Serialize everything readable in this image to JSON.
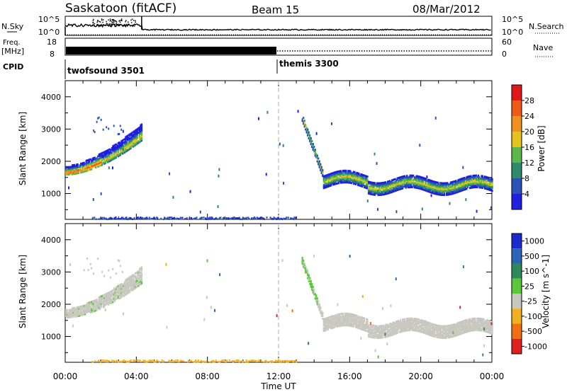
{
  "header": {
    "station": "Saskatoon (fitACF)",
    "beam": "Beam 15",
    "date": "08/Mar/2012"
  },
  "top_panels": {
    "nsky_label": "N.Sky",
    "nsky_ticks": [
      "10^5",
      "10^0"
    ],
    "nsearch_label": "N.Search",
    "nsearch_ticks": [
      "10^5",
      "10^0"
    ],
    "freq_label": "Freq.",
    "freq_unit": "[MHz]",
    "freq_ticks": [
      "18",
      "8"
    ],
    "nave_label": "Nave",
    "nave_ticks": [
      "60",
      "0"
    ],
    "cpid_label": "CPID",
    "cpid_modes": [
      {
        "name": "twofsound 3501",
        "start_hour": 0
      },
      {
        "name": "themis 3300",
        "start_hour": 12
      }
    ]
  },
  "time_axis": {
    "label": "Time UT",
    "range_hours": [
      0,
      24
    ],
    "ticks": [
      {
        "hour": 0,
        "label": "00:00"
      },
      {
        "hour": 4,
        "label": "04:00"
      },
      {
        "hour": 8,
        "label": "08:00"
      },
      {
        "hour": 12,
        "label": "12:00"
      },
      {
        "hour": 16,
        "label": "16:00"
      },
      {
        "hour": 20,
        "label": "20:00"
      },
      {
        "hour": 24,
        "label": "00:00"
      }
    ]
  },
  "chart_data": [
    {
      "type": "heatmap",
      "title": "",
      "ylabel": "Slant Range [km]",
      "ylim": [
        200,
        4500
      ],
      "yticks": [
        1000,
        2000,
        3000,
        4000
      ],
      "colorbar_label": "Power [dB]",
      "colorbar_ticks": [
        "4",
        "8",
        "12",
        "16",
        "20",
        "24",
        "28"
      ],
      "colorbar_colors": [
        "#1f1fe0",
        "#2a52b8",
        "#2e8a6a",
        "#5ab84a",
        "#e6c21e",
        "#f09020",
        "#f05a18",
        "#e01818"
      ],
      "echo_regions": [
        {
          "name": "",
          "time_range": [
            0.0,
            4.3
          ],
          "range_km": [
            1500,
            3300
          ]
        },
        {
          "name": "",
          "time_range": [
            13.3,
            24.0
          ],
          "range_km": [
            900,
            3500
          ]
        },
        {
          "name": "",
          "time_range": [
            1.5,
            13.0
          ],
          "range_km": [
            200,
            300
          ]
        }
      ]
    },
    {
      "type": "heatmap",
      "title": "",
      "ylabel": "Slant Range [km]",
      "ylim": [
        200,
        4500
      ],
      "yticks": [
        1000,
        2000,
        3000,
        4000
      ],
      "colorbar_label": "Velocity [m s^-1]",
      "colorbar_ticks": [
        "1000",
        "500",
        "100",
        "25",
        "-25",
        "-100",
        "-500",
        "-1000"
      ],
      "colorbar_colors": [
        "#1a2ad0",
        "#2a66b8",
        "#2e8a5a",
        "#5ac83a",
        "#c8c8c0",
        "#f0b020",
        "#f07010",
        "#e02020"
      ],
      "echo_regions": [
        {
          "name": "",
          "time_range": [
            0.0,
            4.3
          ],
          "range_km": [
            1500,
            3300
          ]
        },
        {
          "name": "",
          "time_range": [
            13.3,
            24.0
          ],
          "range_km": [
            900,
            3500
          ]
        },
        {
          "name": "",
          "time_range": [
            1.5,
            13.0
          ],
          "range_km": [
            200,
            300
          ]
        }
      ]
    }
  ]
}
